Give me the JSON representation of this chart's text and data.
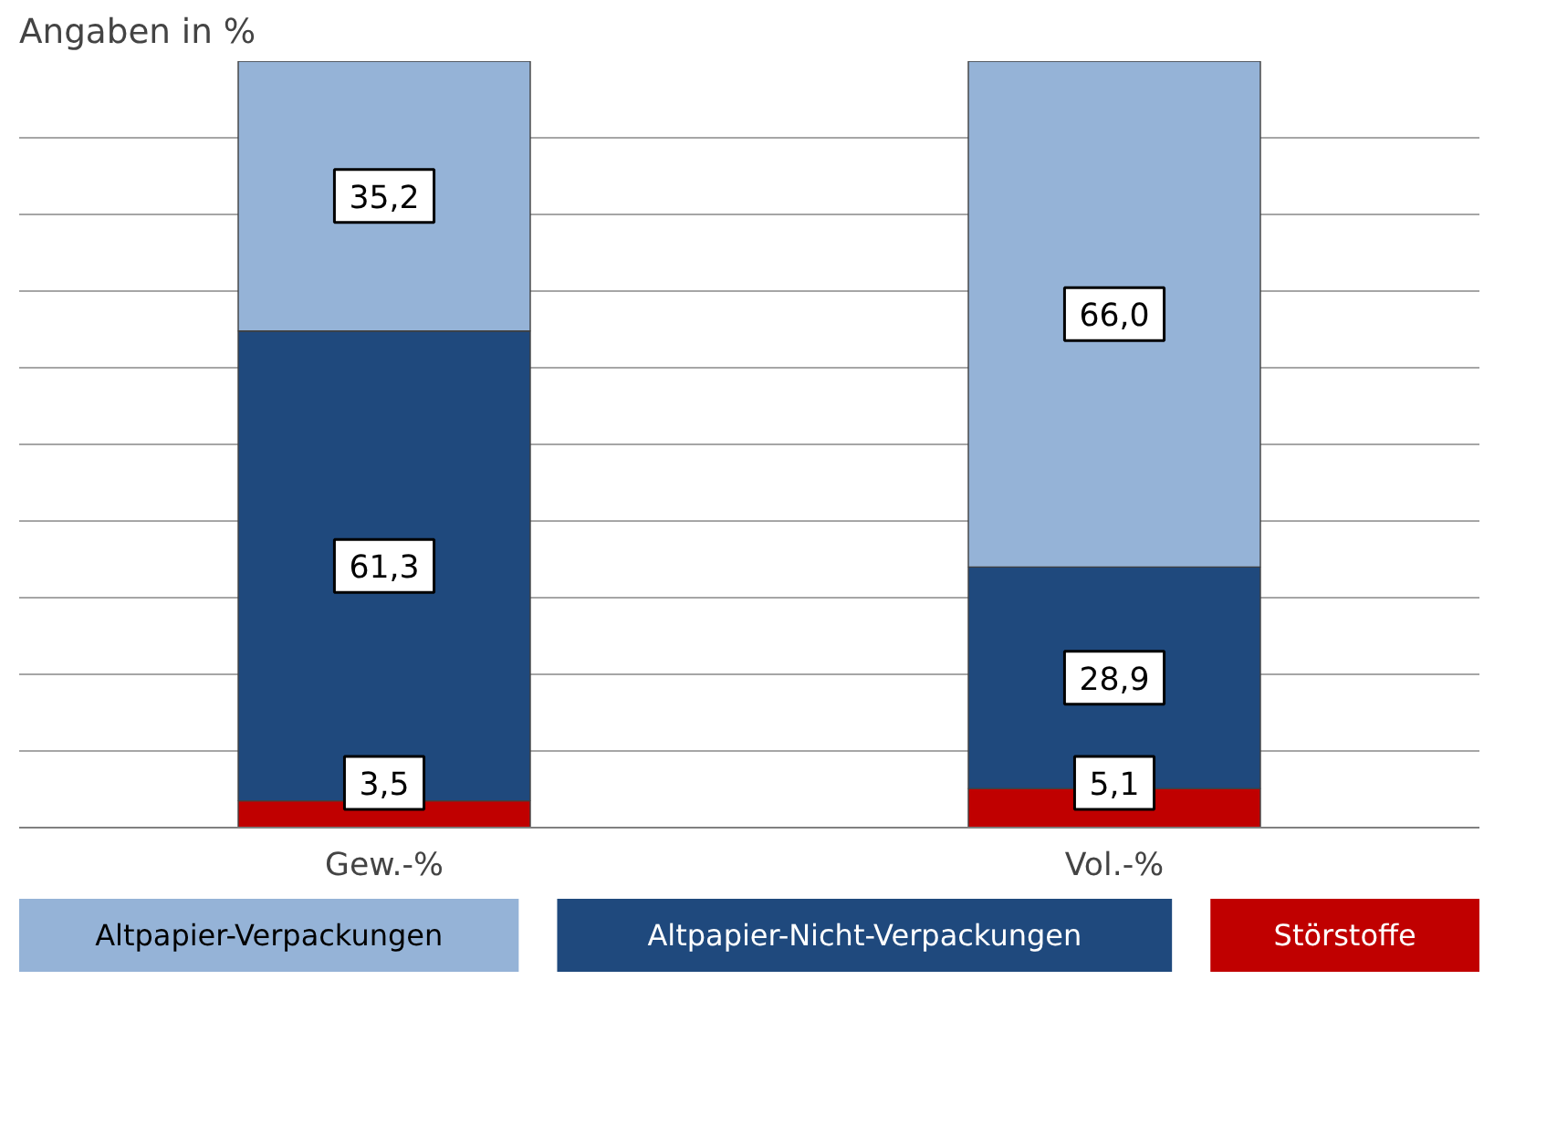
{
  "chart_data": {
    "type": "bar",
    "stacked": true,
    "title": "Angaben in %",
    "categories": [
      "Gew.-%",
      "Vol.-%"
    ],
    "series": [
      {
        "name": "Störstoffe",
        "color": "#c00000",
        "values": [
          3.5,
          5.1
        ],
        "value_labels": [
          "3,5",
          "5,1"
        ]
      },
      {
        "name": "Altpapier-Nicht-Verpackungen",
        "color": "#1f497d",
        "values": [
          61.3,
          28.9
        ],
        "value_labels": [
          "61,3",
          "28,9"
        ]
      },
      {
        "name": "Altpapier-Verpackungen",
        "color": "#95b3d7",
        "values": [
          35.2,
          66.0
        ],
        "value_labels": [
          "35,2",
          "66,0"
        ]
      }
    ],
    "ylim": [
      0,
      100
    ],
    "yticks": [
      {
        "value": 0,
        "label": null
      },
      {
        "value": 10,
        "label": null
      },
      {
        "value": 20,
        "label": null
      },
      {
        "value": 30,
        "label": null
      },
      {
        "value": 40,
        "label": null
      },
      {
        "value": 50,
        "label": null
      },
      {
        "value": 60,
        "label": null
      },
      {
        "value": 70,
        "label": null
      },
      {
        "value": 80,
        "label": null
      },
      {
        "value": 90,
        "label": null
      }
    ],
    "tick_labels": "x",
    "grid": "y",
    "legend": "bottom"
  }
}
